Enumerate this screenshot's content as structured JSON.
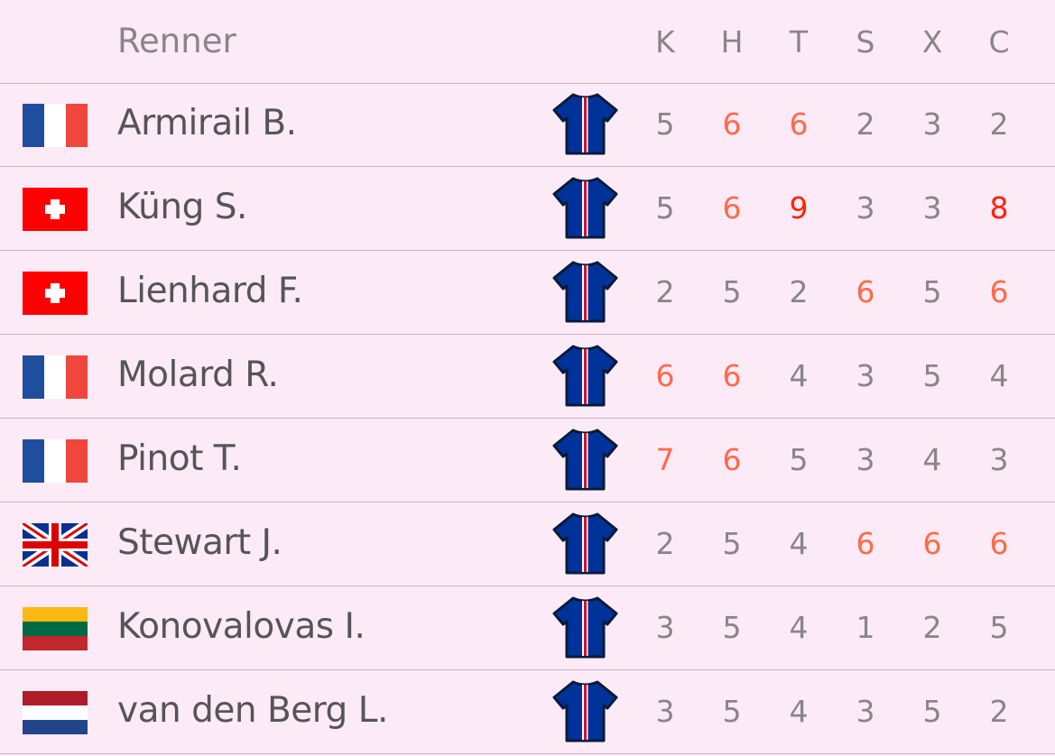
{
  "header": {
    "rider_label": "Renner",
    "columns": [
      "K",
      "H",
      "T",
      "S",
      "X",
      "C"
    ]
  },
  "colors": {
    "normal": "#8a8587",
    "high": "#ff6a48",
    "top": "#ff2200",
    "jersey": "#003399"
  },
  "riders": [
    {
      "name": "Armirail B.",
      "flag": "france",
      "stats": [
        5,
        6,
        6,
        2,
        3,
        2
      ]
    },
    {
      "name": "Küng S.",
      "flag": "switzerland",
      "stats": [
        5,
        6,
        9,
        3,
        3,
        8
      ]
    },
    {
      "name": "Lienhard F.",
      "flag": "switzerland",
      "stats": [
        2,
        5,
        2,
        6,
        5,
        6
      ]
    },
    {
      "name": "Molard R.",
      "flag": "france",
      "stats": [
        6,
        6,
        4,
        3,
        5,
        4
      ]
    },
    {
      "name": "Pinot T.",
      "flag": "france",
      "stats": [
        7,
        6,
        5,
        3,
        4,
        3
      ]
    },
    {
      "name": "Stewart J.",
      "flag": "united-kingdom",
      "stats": [
        2,
        5,
        4,
        6,
        6,
        6
      ]
    },
    {
      "name": "Konovalovas I.",
      "flag": "lithuania",
      "stats": [
        3,
        5,
        4,
        1,
        2,
        5
      ]
    },
    {
      "name": "van den Berg L.",
      "flag": "netherlands",
      "stats": [
        3,
        5,
        4,
        3,
        5,
        2
      ]
    }
  ]
}
